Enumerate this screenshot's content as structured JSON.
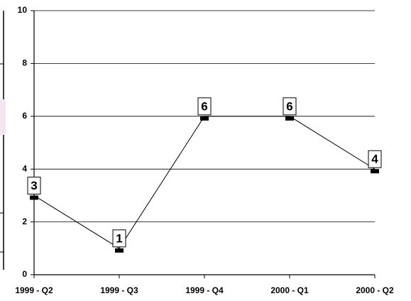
{
  "chart_data": {
    "type": "line",
    "categories": [
      "1999 - Q2",
      "1999 - Q3",
      "1999 - Q4",
      "2000 - Q1",
      "2000 - Q2"
    ],
    "values": [
      3,
      1,
      6,
      6,
      4
    ],
    "color": "#000000",
    "ylim": [
      0,
      10
    ],
    "yticks": [
      0,
      2,
      4,
      6,
      8,
      10
    ],
    "grid": true
  }
}
